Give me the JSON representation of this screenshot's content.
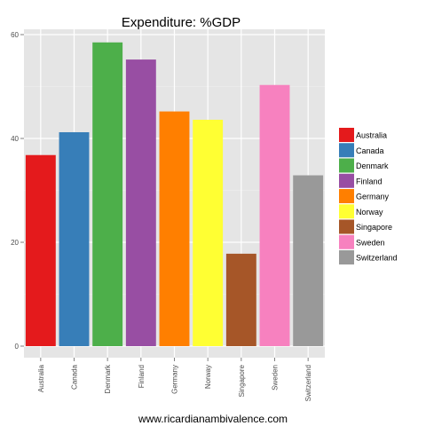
{
  "chart_data": {
    "type": "bar",
    "title": "Expenditure: %GDP",
    "xlabel": "www.ricardianambivalence.com",
    "ylabel": "",
    "categories": [
      "Australia",
      "Canada",
      "Denmark",
      "Finland",
      "Germany",
      "Norway",
      "Singapore",
      "Sweden",
      "Switzerland"
    ],
    "values": [
      36.8,
      41.2,
      58.5,
      55.2,
      45.2,
      43.6,
      17.8,
      50.3,
      32.9
    ],
    "colors": [
      "#e41a1c",
      "#377eb8",
      "#4daf4a",
      "#984ea3",
      "#ff7f00",
      "#ffff33",
      "#a65628",
      "#f781bf",
      "#999999"
    ],
    "ylim": [
      0,
      61
    ],
    "yticks": [
      0,
      20,
      40,
      60
    ],
    "grid": true,
    "legend": {
      "position": "right",
      "entries": [
        "Australia",
        "Canada",
        "Denmark",
        "Finland",
        "Germany",
        "Norway",
        "Singapore",
        "Sweden",
        "Switzerland"
      ]
    },
    "panel_background": "#e5e5e5",
    "grid_color": "#ffffff"
  }
}
